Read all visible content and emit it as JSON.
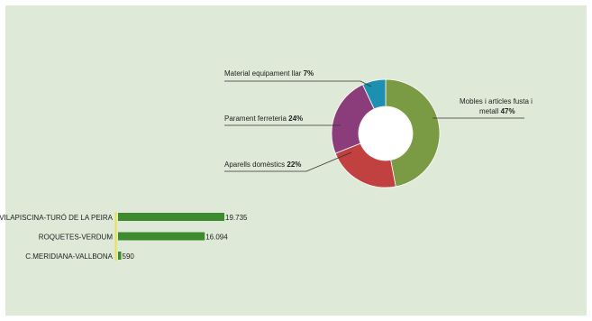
{
  "chart_data": [
    {
      "type": "pie",
      "variant": "donut",
      "slices": [
        {
          "label": "Mobles i articles fusta i metall",
          "label_lines": [
            "Mobles i articles fusta i",
            "metall"
          ],
          "value_label": "47%",
          "value": 47,
          "color": "#7a9a44"
        },
        {
          "label": "Aparells domèstics",
          "value_label": "22%",
          "value": 22,
          "color": "#c0413f"
        },
        {
          "label": "Parament ferreteria",
          "value_label": "24%",
          "value": 24,
          "color": "#8a3d7a"
        },
        {
          "label": "Material equipament llar",
          "value_label": "7%",
          "value": 7,
          "color": "#1d8fb0"
        }
      ]
    },
    {
      "type": "bar",
      "orientation": "horizontal",
      "categories": [
        "VILAPISCINA-TURÓ DE LA PEIRA",
        "ROQUETES-VERDUM",
        "C.MERIDIANA-VALLBONA"
      ],
      "values": [
        19735,
        16094,
        590
      ],
      "value_labels": [
        "19.735",
        "16.094",
        "590"
      ],
      "color": "#3d8a2f",
      "baseline_color": "#e8e34a"
    }
  ]
}
